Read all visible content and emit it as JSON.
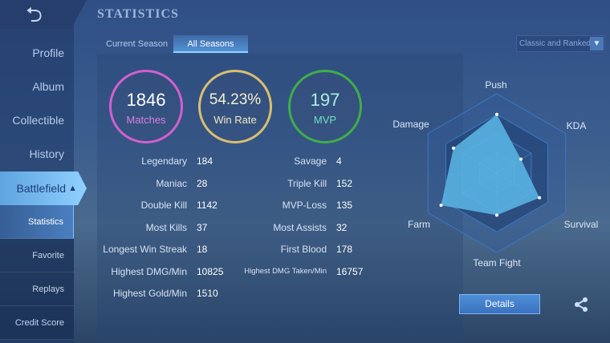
{
  "header": {
    "title": "STATISTICS",
    "back_icon": "back-arrow-icon"
  },
  "sidebar": {
    "items": [
      "Profile",
      "Album",
      "Collectible",
      "History"
    ],
    "active": "Battlefield",
    "sub_items": [
      "Statistics",
      "Favorite",
      "Replays",
      "Credit Score"
    ],
    "active_sub": "Statistics"
  },
  "tabs": [
    "Current Season",
    "All Seasons"
  ],
  "active_tab": "All Seasons",
  "mode_select": {
    "value": "Classic and Ranked"
  },
  "summary": [
    {
      "value": "1846",
      "label": "Matches",
      "color": "#d45fcf"
    },
    {
      "value": "54.23%",
      "label": "Win Rate",
      "color": "#d8c071"
    },
    {
      "value": "197",
      "label": "MVP",
      "color": "#3fae4a"
    }
  ],
  "stats_left": [
    [
      "Legendary",
      "184"
    ],
    [
      "Maniac",
      "28"
    ],
    [
      "Double Kill",
      "1142"
    ],
    [
      "Most Kills",
      "37"
    ],
    [
      "Longest Win Streak",
      "18"
    ],
    [
      "Highest DMG/Min",
      "10825"
    ],
    [
      "Highest Gold/Min",
      "1510"
    ]
  ],
  "stats_right": [
    [
      "Savage",
      "4"
    ],
    [
      "Triple Kill",
      "152"
    ],
    [
      "MVP-Loss",
      "135"
    ],
    [
      "Most Assists",
      "32"
    ],
    [
      "First Blood",
      "178"
    ],
    [
      "Highest DMG Taken/Min",
      "16757"
    ]
  ],
  "radar": {
    "axes": [
      "Push",
      "KDA",
      "Survival",
      "Team Fight",
      "Farm",
      "Damage"
    ],
    "values": [
      0.74,
      0.35,
      0.62,
      0.53,
      0.81,
      0.63
    ],
    "fill": "#5bb8e8"
  },
  "details_label": "Details",
  "share_icon": "share-icon"
}
